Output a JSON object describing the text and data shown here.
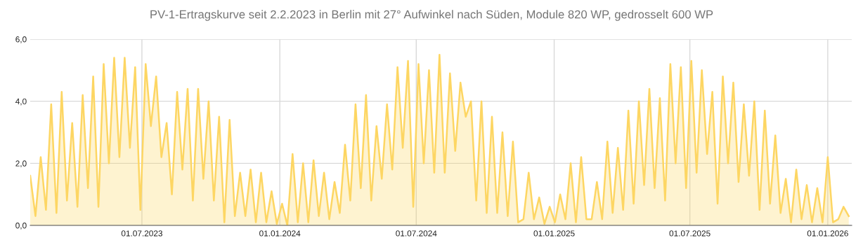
{
  "chart_data": {
    "type": "area",
    "title": "PV-1-Ertragskurve seit 2.2.2023 in Berlin mit 27° Aufwinkel nach Süden, Module 820 WP, gedrosselt 600 WP",
    "x": [
      "2023-02-02",
      "2023-02-09",
      "2023-02-16",
      "2023-02-23",
      "2023-03-02",
      "2023-03-09",
      "2023-03-16",
      "2023-03-23",
      "2023-03-30",
      "2023-04-06",
      "2023-04-13",
      "2023-04-20",
      "2023-04-27",
      "2023-05-04",
      "2023-05-11",
      "2023-05-18",
      "2023-05-25",
      "2023-06-01",
      "2023-06-08",
      "2023-06-15",
      "2023-06-22",
      "2023-06-29",
      "2023-07-06",
      "2023-07-13",
      "2023-07-20",
      "2023-07-27",
      "2023-08-03",
      "2023-08-10",
      "2023-08-17",
      "2023-08-24",
      "2023-08-31",
      "2023-09-07",
      "2023-09-14",
      "2023-09-21",
      "2023-09-28",
      "2023-10-05",
      "2023-10-12",
      "2023-10-19",
      "2023-10-26",
      "2023-11-02",
      "2023-11-09",
      "2023-11-16",
      "2023-11-23",
      "2023-11-30",
      "2023-12-07",
      "2023-12-14",
      "2023-12-21",
      "2023-12-28",
      "2024-01-04",
      "2024-01-11",
      "2024-01-18",
      "2024-01-25",
      "2024-02-01",
      "2024-02-08",
      "2024-02-15",
      "2024-02-22",
      "2024-02-29",
      "2024-03-07",
      "2024-03-14",
      "2024-03-21",
      "2024-03-28",
      "2024-04-04",
      "2024-04-11",
      "2024-04-18",
      "2024-04-25",
      "2024-05-02",
      "2024-05-09",
      "2024-05-16",
      "2024-05-23",
      "2024-05-30",
      "2024-06-06",
      "2024-06-13",
      "2024-06-20",
      "2024-06-27",
      "2024-07-04",
      "2024-07-11",
      "2024-07-18",
      "2024-07-25",
      "2024-08-01",
      "2024-08-08",
      "2024-08-15",
      "2024-08-22",
      "2024-08-29",
      "2024-09-05",
      "2024-09-12",
      "2024-09-19",
      "2024-09-26",
      "2024-10-03",
      "2024-10-10",
      "2024-10-17",
      "2024-10-24",
      "2024-10-31",
      "2024-11-07",
      "2024-11-14",
      "2024-11-21",
      "2024-11-28",
      "2024-12-05",
      "2024-12-12",
      "2024-12-19",
      "2024-12-26",
      "2025-01-02",
      "2025-01-09",
      "2025-01-16",
      "2025-01-23",
      "2025-01-30",
      "2025-02-06",
      "2025-02-13",
      "2025-02-20",
      "2025-02-27",
      "2025-03-06",
      "2025-03-13",
      "2025-03-20",
      "2025-03-27",
      "2025-04-03",
      "2025-04-10",
      "2025-04-17",
      "2025-04-24",
      "2025-05-01",
      "2025-05-08",
      "2025-05-15",
      "2025-05-22",
      "2025-05-29",
      "2025-06-05",
      "2025-06-12",
      "2025-06-19",
      "2025-06-26",
      "2025-07-03",
      "2025-07-10",
      "2025-07-17",
      "2025-07-24",
      "2025-07-31",
      "2025-08-07",
      "2025-08-14",
      "2025-08-21",
      "2025-08-28",
      "2025-09-04",
      "2025-09-11",
      "2025-09-18",
      "2025-09-25",
      "2025-10-02",
      "2025-10-09",
      "2025-10-16",
      "2025-10-23",
      "2025-10-30",
      "2025-11-06",
      "2025-11-13",
      "2025-11-20",
      "2025-11-27",
      "2025-12-04",
      "2025-12-11",
      "2025-12-18",
      "2025-12-25",
      "2026-01-01",
      "2026-01-08",
      "2026-01-15",
      "2026-01-22",
      "2026-01-29"
    ],
    "series": [
      {
        "color": "#fdd663",
        "values": [
          1.6,
          0.3,
          2.2,
          0.5,
          3.9,
          0.4,
          4.3,
          0.8,
          3.3,
          0.6,
          4.2,
          1.2,
          4.8,
          0.6,
          5.2,
          2.0,
          5.4,
          2.2,
          5.4,
          2.5,
          5.1,
          0.5,
          5.2,
          3.2,
          4.8,
          2.2,
          3.3,
          1.0,
          4.3,
          1.8,
          4.4,
          0.8,
          4.4,
          1.5,
          4.0,
          0.8,
          3.5,
          0.1,
          3.4,
          0.3,
          1.7,
          0.3,
          1.8,
          0.1,
          1.7,
          0.1,
          1.1,
          0.05,
          0.7,
          0.0,
          2.3,
          0.1,
          2.0,
          0.1,
          2.1,
          0.3,
          1.7,
          0.2,
          1.4,
          0.4,
          2.6,
          0.8,
          3.9,
          1.2,
          4.2,
          0.8,
          3.2,
          1.5,
          3.9,
          1.8,
          5.1,
          2.5,
          5.3,
          0.6,
          5.2,
          2.0,
          5.0,
          1.7,
          5.5,
          1.7,
          4.9,
          2.4,
          4.6,
          3.5,
          4.0,
          0.8,
          4.0,
          0.4,
          3.5,
          0.4,
          3.0,
          0.3,
          2.7,
          0.1,
          0.2,
          1.7,
          0.2,
          0.9,
          0.05,
          0.6,
          0.1,
          1.0,
          0.2,
          2.0,
          0.1,
          2.2,
          0.2,
          0.2,
          1.4,
          0.2,
          2.7,
          0.4,
          2.5,
          0.5,
          3.7,
          0.7,
          4.0,
          1.3,
          4.4,
          1.2,
          4.1,
          0.8,
          5.2,
          2.0,
          5.1,
          1.2,
          5.3,
          1.7,
          5.0,
          2.3,
          4.3,
          0.7,
          4.8,
          2.0,
          4.6,
          1.4,
          3.9,
          1.6,
          4.0,
          0.5,
          3.7,
          0.7,
          2.9,
          0.4,
          1.5,
          0.1,
          1.8,
          0.2,
          1.3,
          0.1,
          1.2,
          0.1,
          2.2,
          0.1,
          0.2,
          0.6,
          0.3
        ]
      }
    ],
    "xlim": [
      "2023-02-02",
      "2026-02-02"
    ],
    "xticks": [
      {
        "value": "2023-07-01",
        "label": "01.07.2023"
      },
      {
        "value": "2024-01-01",
        "label": "01.01.2024"
      },
      {
        "value": "2024-07-01",
        "label": "01.07.2024"
      },
      {
        "value": "2025-01-01",
        "label": "01.01.2025"
      },
      {
        "value": "2025-07-01",
        "label": "01.07.2025"
      },
      {
        "value": "2026-01-01",
        "label": "01.01.2026"
      }
    ],
    "ylim": [
      0,
      6
    ],
    "yticks": [
      {
        "value": 0,
        "label": "0,0"
      },
      {
        "value": 2,
        "label": "2,0"
      },
      {
        "value": 4,
        "label": "4,0"
      },
      {
        "value": 6,
        "label": "6,0"
      }
    ],
    "grid": true,
    "legend": false
  }
}
